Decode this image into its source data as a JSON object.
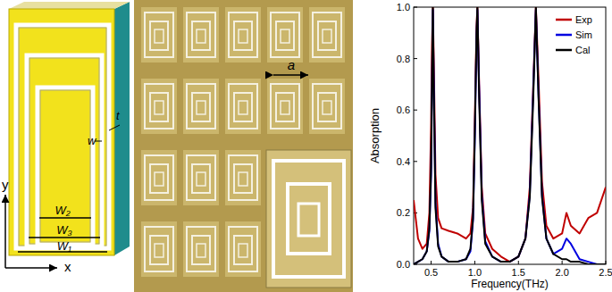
{
  "schematic": {
    "y_axis": "y",
    "x_axis": "x",
    "gap": "w",
    "thickness": "t",
    "widths": [
      "W₂",
      "W₃",
      "W₁"
    ]
  },
  "micrograph": {
    "period": "a"
  },
  "chart_data": {
    "type": "line",
    "x_label": "Frequency(THz)",
    "y_label": "Absorption",
    "xlim": [
      0.3,
      2.5
    ],
    "ylim": [
      0,
      1
    ],
    "xticks": [
      0.5,
      {
        "value": 1,
        "label": "1.0"
      },
      1.5,
      {
        "value": 2,
        "label": "2.0"
      },
      2.5
    ],
    "yticks": [
      {
        "value": 0,
        "label": "0.0"
      },
      0.2,
      0.4,
      0.6,
      0.8,
      {
        "value": 1,
        "label": "1.0"
      }
    ],
    "grid": false,
    "legend": "top-right",
    "x": [
      0.3,
      0.35,
      0.4,
      0.45,
      0.48,
      0.5,
      0.51,
      0.52,
      0.53,
      0.55,
      0.58,
      0.62,
      0.7,
      0.8,
      0.9,
      0.95,
      0.98,
      1.0,
      1.02,
      1.03,
      1.05,
      1.08,
      1.12,
      1.2,
      1.3,
      1.4,
      1.5,
      1.58,
      1.63,
      1.67,
      1.7,
      1.73,
      1.77,
      1.82,
      1.9,
      2.0,
      2.05,
      2.1,
      2.2,
      2.3,
      2.4,
      2.5
    ],
    "series": [
      {
        "name": "Exp",
        "color": "#c00000",
        "values": [
          0.25,
          0.1,
          0.06,
          0.08,
          0.2,
          0.55,
          0.85,
          1.0,
          0.8,
          0.35,
          0.18,
          0.14,
          0.13,
          0.12,
          0.1,
          0.12,
          0.22,
          0.55,
          0.92,
          1.0,
          0.7,
          0.3,
          0.12,
          0.06,
          0.03,
          0.01,
          0.03,
          0.1,
          0.3,
          0.7,
          1.0,
          0.72,
          0.32,
          0.15,
          0.1,
          0.12,
          0.2,
          0.15,
          0.12,
          0.18,
          0.2,
          0.3
        ]
      },
      {
        "name": "Sim",
        "color": "#0000e0",
        "values": [
          0.0,
          0.01,
          0.02,
          0.05,
          0.13,
          0.35,
          0.68,
          0.99,
          0.72,
          0.24,
          0.08,
          0.03,
          0.01,
          0.01,
          0.02,
          0.05,
          0.17,
          0.48,
          0.88,
          0.99,
          0.68,
          0.27,
          0.09,
          0.03,
          0.01,
          0.01,
          0.03,
          0.1,
          0.27,
          0.68,
          0.99,
          0.66,
          0.27,
          0.1,
          0.04,
          0.06,
          0.1,
          0.08,
          0.02,
          0.01,
          0.0,
          0.0
        ]
      },
      {
        "name": "Cal",
        "color": "#000000",
        "values": [
          0.0,
          0.01,
          0.02,
          0.05,
          0.14,
          0.38,
          0.7,
          1.0,
          0.7,
          0.22,
          0.07,
          0.03,
          0.01,
          0.01,
          0.02,
          0.06,
          0.18,
          0.5,
          0.9,
          1.0,
          0.65,
          0.25,
          0.08,
          0.03,
          0.01,
          0.01,
          0.03,
          0.1,
          0.26,
          0.65,
          1.0,
          0.65,
          0.26,
          0.1,
          0.04,
          0.02,
          0.02,
          0.01,
          0.01,
          0.0,
          0.0,
          0.0
        ]
      }
    ]
  }
}
